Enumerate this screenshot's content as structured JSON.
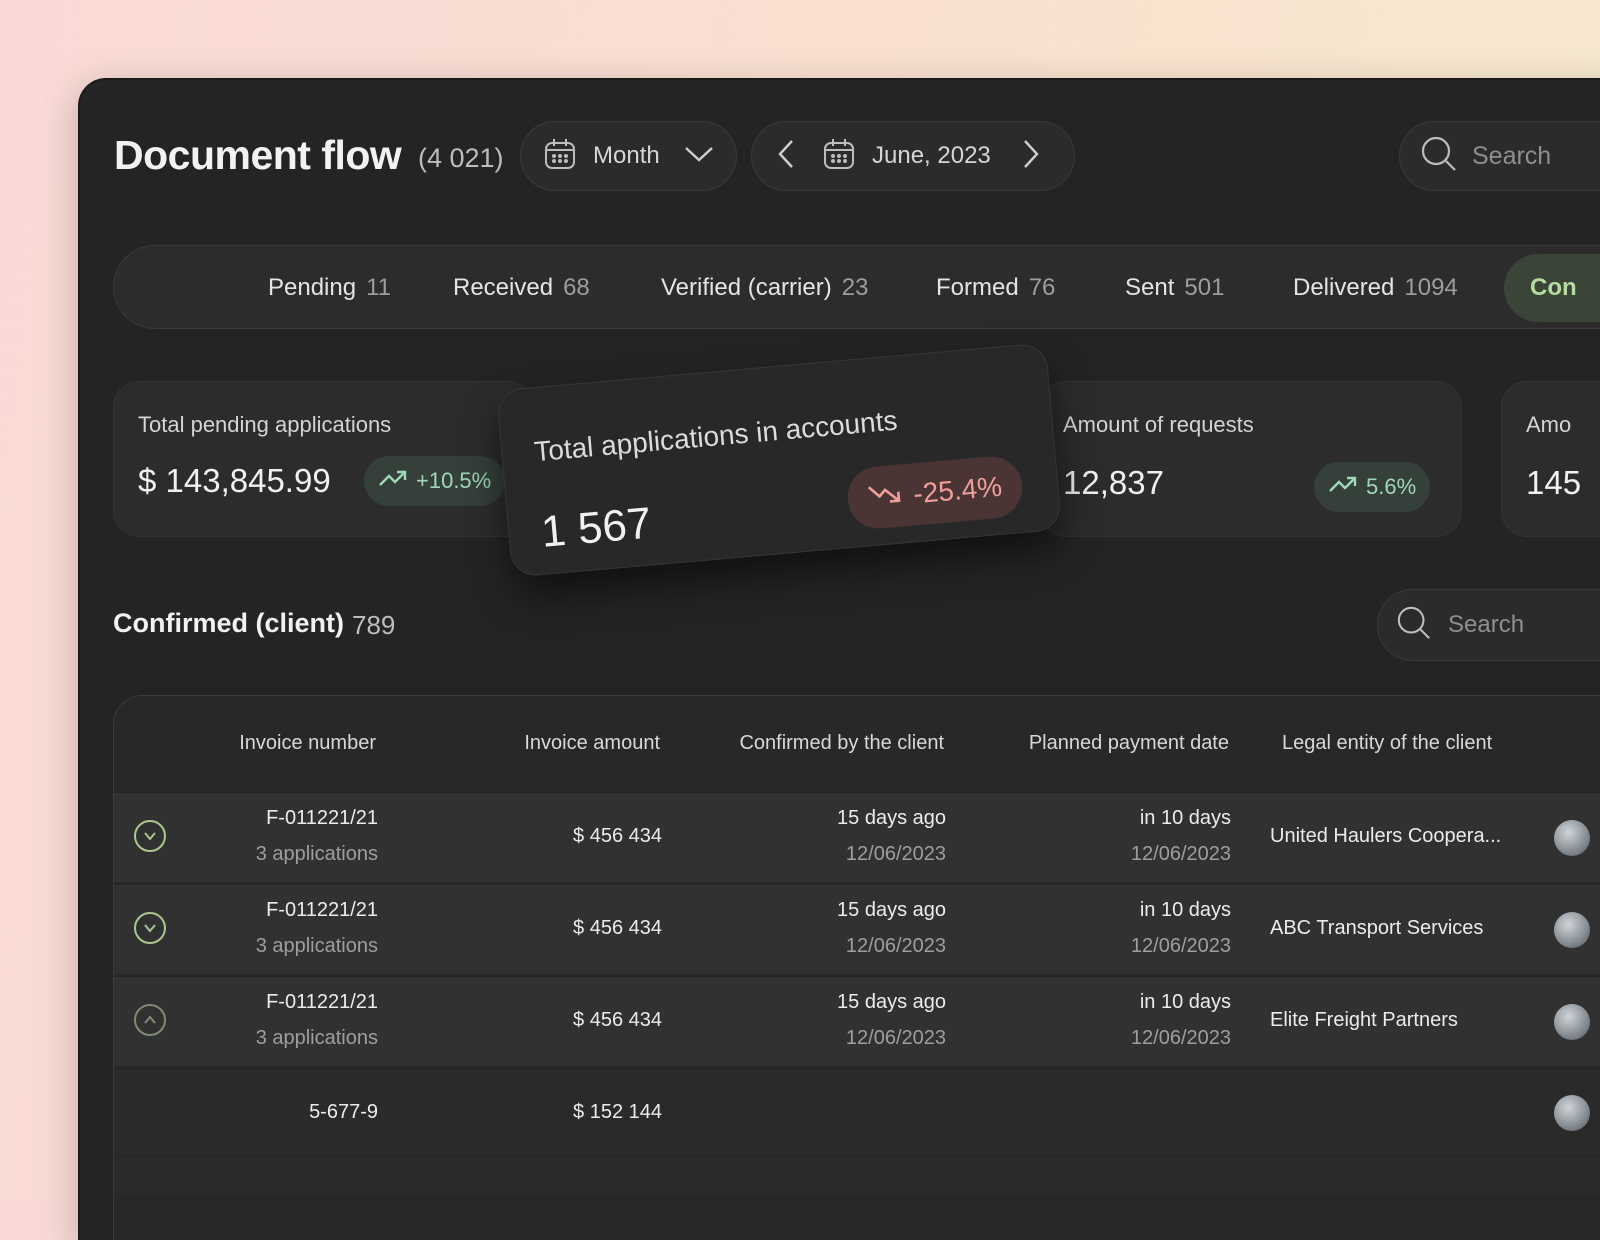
{
  "header": {
    "title": "Document flow",
    "count": "(4 021)",
    "period_select": "Month",
    "date_label": "June, 2023",
    "search_placeholder": "Search"
  },
  "tabs": [
    {
      "label": "Pending",
      "count": "11"
    },
    {
      "label": "Received",
      "count": "68"
    },
    {
      "label": "Verified (carrier)",
      "count": "23"
    },
    {
      "label": "Formed",
      "count": "76"
    },
    {
      "label": "Sent",
      "count": "501"
    },
    {
      "label": "Delivered",
      "count": "1094"
    },
    {
      "label": "Con",
      "active": true
    }
  ],
  "cards": {
    "pending": {
      "label": "Total pending applications",
      "value": "$ 143,845.99",
      "change": "+10.5%",
      "trend": "up"
    },
    "accounts": {
      "label": "Total applications in accounts",
      "value": "1 567",
      "change": "-25.4%",
      "trend": "down"
    },
    "requests": {
      "label": "Amount of requests",
      "value": "12,837",
      "change": "5.6%",
      "trend": "up"
    },
    "partial": {
      "label": "Amo",
      "value": "145"
    }
  },
  "section": {
    "title": "Confirmed (client)",
    "count": "789",
    "search_placeholder": "Search"
  },
  "table": {
    "headers": [
      "Invoice number",
      "Invoice amount",
      "Confirmed by the client",
      "Planned payment date",
      "Legal entity of the client"
    ],
    "rows": [
      {
        "invoice": "F-011221/21",
        "apps": "3 applications",
        "amount": "$ 456 434",
        "confirmed": "15 days ago",
        "confirmed_date": "12/06/2023",
        "planned": "in 10 days",
        "planned_date": "12/06/2023",
        "entity": "United Haulers Coopera...",
        "expanded": false
      },
      {
        "invoice": "F-011221/21",
        "apps": "3 applications",
        "amount": "$ 456 434",
        "confirmed": "15 days ago",
        "confirmed_date": "12/06/2023",
        "planned": "in 10 days",
        "planned_date": "12/06/2023",
        "entity": "ABC Transport Services",
        "expanded": false
      },
      {
        "invoice": "F-011221/21",
        "apps": "3 applications",
        "amount": "$ 456 434",
        "confirmed": "15 days ago",
        "confirmed_date": "12/06/2023",
        "planned": "in 10 days",
        "planned_date": "12/06/2023",
        "entity": "Elite Freight Partners",
        "expanded": true
      }
    ],
    "sub_rows": [
      {
        "invoice": "5-677-9",
        "amount": "$ 152 144"
      }
    ]
  },
  "colors": {
    "background": "#242424",
    "accent_green": "#b6dba0",
    "positive": "#9fd8b6",
    "negative": "#ef9f9a"
  },
  "icons": [
    "calendar-icon",
    "chevron-down-icon",
    "chevron-left-icon",
    "chevron-right-icon",
    "search-icon",
    "trend-up-icon",
    "trend-down-icon"
  ]
}
